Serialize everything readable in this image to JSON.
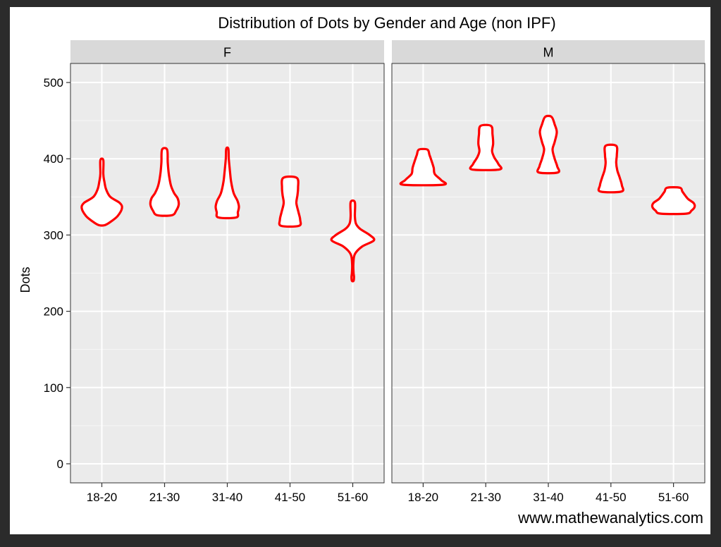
{
  "chart_data": {
    "type": "violin",
    "title": "Distribution of Dots by Gender and Age (non IPF)",
    "ylabel": "Dots",
    "xlabel": "",
    "ylim": [
      -25,
      525
    ],
    "yticks": [
      0,
      100,
      200,
      300,
      400,
      500
    ],
    "grid": true,
    "violin_color": "#ff0000",
    "panel_background": "#ebebeb",
    "strip_background": "#d9d9d9",
    "categories": [
      "18-20",
      "21-30",
      "31-40",
      "41-50",
      "51-60"
    ],
    "facets": [
      {
        "name": "F",
        "violins": [
          {
            "category": "18-20",
            "profile": [
              [
                313,
                0.15
              ],
              [
                318,
                0.45
              ],
              [
                325,
                0.75
              ],
              [
                335,
                0.95
              ],
              [
                342,
                0.85
              ],
              [
                350,
                0.4
              ],
              [
                360,
                0.2
              ],
              [
                370,
                0.12
              ],
              [
                380,
                0.07
              ],
              [
                398,
                0.07
              ]
            ]
          },
          {
            "category": "21-30",
            "profile": [
              [
                326,
                0.35
              ],
              [
                332,
                0.55
              ],
              [
                340,
                0.67
              ],
              [
                348,
                0.62
              ],
              [
                355,
                0.45
              ],
              [
                365,
                0.3
              ],
              [
                380,
                0.2
              ],
              [
                395,
                0.15
              ],
              [
                412,
                0.12
              ]
            ]
          },
          {
            "category": "31-40",
            "profile": [
              [
                323,
                0.42
              ],
              [
                330,
                0.5
              ],
              [
                337,
                0.55
              ],
              [
                345,
                0.48
              ],
              [
                355,
                0.3
              ],
              [
                370,
                0.18
              ],
              [
                385,
                0.12
              ],
              [
                400,
                0.07
              ],
              [
                413,
                0.05
              ]
            ]
          },
          {
            "category": "41-50",
            "profile": [
              [
                312,
                0.42
              ],
              [
                320,
                0.48
              ],
              [
                330,
                0.4
              ],
              [
                342,
                0.3
              ],
              [
                352,
                0.35
              ],
              [
                362,
                0.38
              ],
              [
                375,
                0.32
              ]
            ]
          },
          {
            "category": "51-60",
            "profile": [
              [
                240,
                0.04
              ],
              [
                245,
                0.06
              ],
              [
                250,
                0.04
              ],
              [
                262,
                0.03
              ],
              [
                275,
                0.1
              ],
              [
                285,
                0.45
              ],
              [
                293,
                1.0
              ],
              [
                300,
                0.8
              ],
              [
                308,
                0.35
              ],
              [
                315,
                0.15
              ],
              [
                325,
                0.1
              ],
              [
                343,
                0.1
              ]
            ]
          }
        ]
      },
      {
        "name": "M",
        "violins": [
          {
            "category": "18-20",
            "profile": [
              [
                366,
                0.95
              ],
              [
                372,
                0.85
              ],
              [
                380,
                0.55
              ],
              [
                388,
                0.5
              ],
              [
                397,
                0.4
              ],
              [
                405,
                0.3
              ],
              [
                412,
                0.2
              ]
            ]
          },
          {
            "category": "21-30",
            "profile": [
              [
                386,
                0.65
              ],
              [
                393,
                0.6
              ],
              [
                402,
                0.4
              ],
              [
                410,
                0.3
              ],
              [
                420,
                0.35
              ],
              [
                432,
                0.32
              ],
              [
                443,
                0.25
              ]
            ]
          },
          {
            "category": "31-40",
            "profile": [
              [
                382,
                0.45
              ],
              [
                390,
                0.42
              ],
              [
                400,
                0.3
              ],
              [
                412,
                0.2
              ],
              [
                422,
                0.3
              ],
              [
                435,
                0.4
              ],
              [
                445,
                0.3
              ],
              [
                455,
                0.15
              ]
            ]
          },
          {
            "category": "41-50",
            "profile": [
              [
                357,
                0.5
              ],
              [
                365,
                0.52
              ],
              [
                375,
                0.42
              ],
              [
                385,
                0.3
              ],
              [
                395,
                0.25
              ],
              [
                405,
                0.28
              ],
              [
                417,
                0.25
              ]
            ]
          },
          {
            "category": "51-60",
            "profile": [
              [
                328,
                0.6
              ],
              [
                332,
                0.85
              ],
              [
                337,
                1.0
              ],
              [
                342,
                0.95
              ],
              [
                347,
                0.7
              ],
              [
                352,
                0.55
              ],
              [
                357,
                0.42
              ],
              [
                362,
                0.3
              ]
            ]
          }
        ]
      }
    ]
  },
  "watermark": "www.mathewanalytics.com"
}
